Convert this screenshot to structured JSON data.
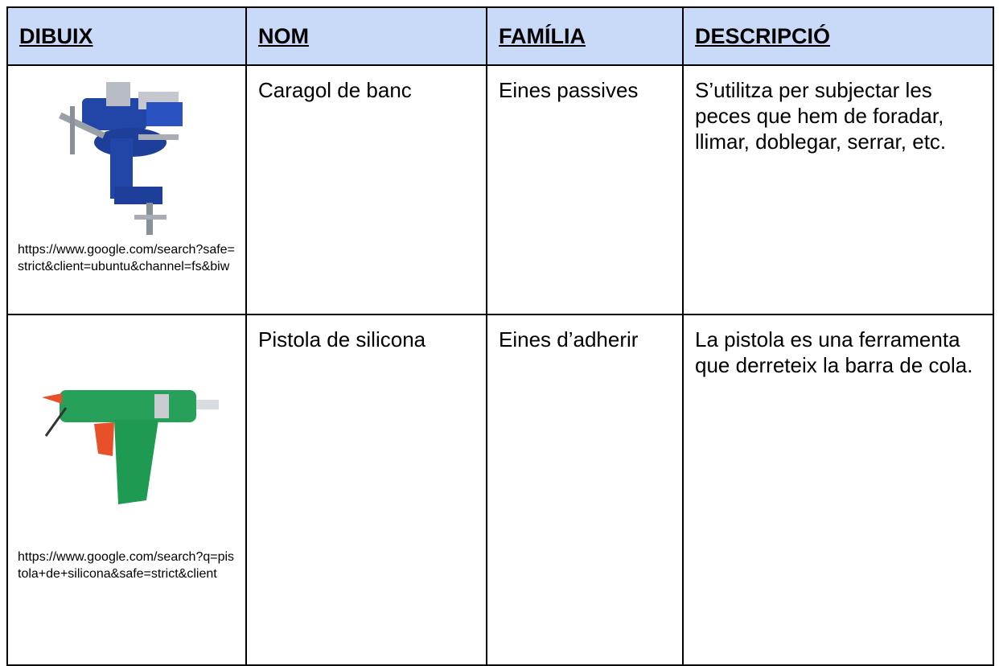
{
  "table": {
    "headers": [
      "DIBUIX",
      "NOM",
      "FAMÍLIA",
      "DESCRIPCIÓ"
    ],
    "rows": [
      [
        "https://www.google.com/search?safe=strict&client=ubuntu&channel=fs&biw",
        "Caragol de banc",
        "Eines passives",
        "S’utilitza per subjectar les peces que hem de foradar, llimar, doblegar, serrar, etc."
      ],
      [
        "https://www.google.com/search?q=pistola+de+silicona&safe=strict&client",
        "Pistola de silicona",
        "Eines d’adherir",
        "La pistola es una ferramenta que derreteix la barra de cola."
      ]
    ]
  }
}
